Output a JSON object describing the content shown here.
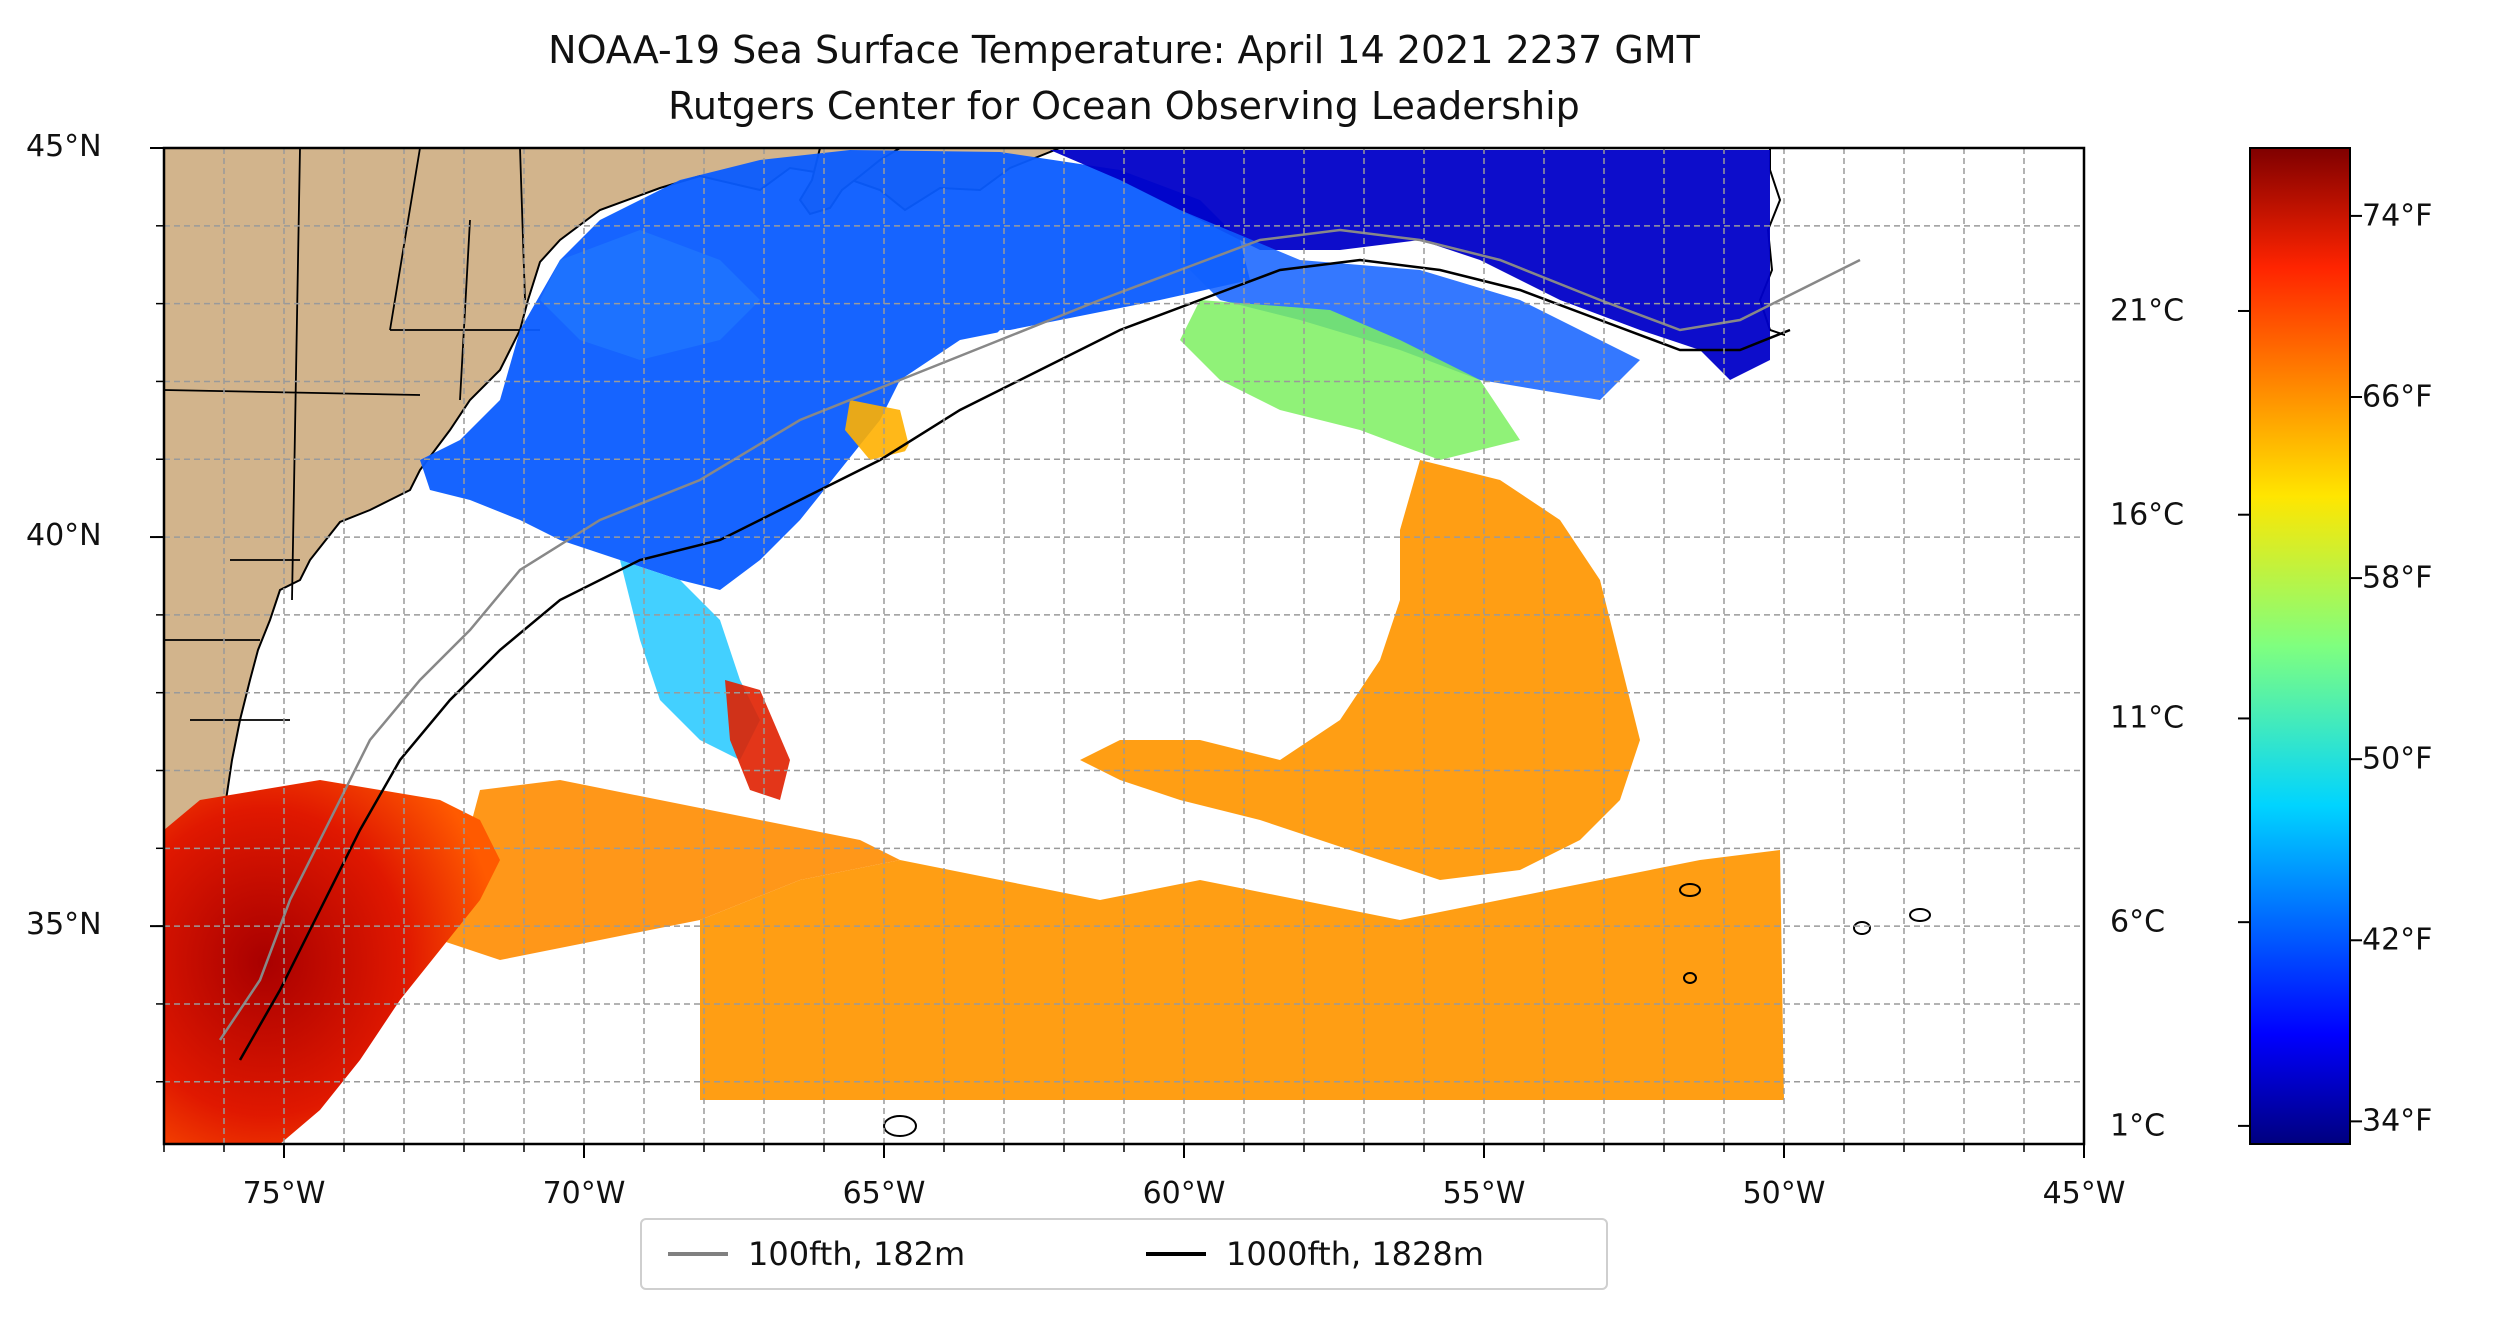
{
  "title": {
    "line1": "NOAA-19 Sea Surface Temperature: April 14 2021 2237 GMT",
    "line2": "Rutgers Center for Ocean Observing Leadership"
  },
  "map": {
    "lon_range": [
      -77,
      -45
    ],
    "lat_range": [
      32.2,
      45
    ],
    "lat_ticks": [
      {
        "value": 45,
        "label": "45°N"
      },
      {
        "value": 40,
        "label": "40°N"
      },
      {
        "value": 35,
        "label": "35°N"
      }
    ],
    "lon_ticks": [
      {
        "value": -75,
        "label": "75°W"
      },
      {
        "value": -70,
        "label": "70°W"
      },
      {
        "value": -65,
        "label": "65°W"
      },
      {
        "value": -60,
        "label": "60°W"
      },
      {
        "value": -55,
        "label": "55°W"
      },
      {
        "value": -50,
        "label": "50°W"
      },
      {
        "value": -45,
        "label": "45°W"
      }
    ],
    "gridlines": true,
    "land_color": "#d2b48c",
    "ocean_color": "#ffffff",
    "colormap": "jet"
  },
  "colorbar": {
    "range_f": [
      33,
      77
    ],
    "celsius_ticks": [
      {
        "value": 1,
        "label": "1°C"
      },
      {
        "value": 6,
        "label": "6°C"
      },
      {
        "value": 11,
        "label": "11°C"
      },
      {
        "value": 16,
        "label": "16°C"
      },
      {
        "value": 21,
        "label": "21°C"
      }
    ],
    "fahrenheit_ticks": [
      {
        "value": 34,
        "label": "34°F"
      },
      {
        "value": 42,
        "label": "42°F"
      },
      {
        "value": 50,
        "label": "50°F"
      },
      {
        "value": 58,
        "label": "58°F"
      },
      {
        "value": 66,
        "label": "66°F"
      },
      {
        "value": 74,
        "label": "74°F"
      }
    ]
  },
  "legend": {
    "position": "bottom-center",
    "items": [
      {
        "label": "100fth, 182m",
        "color": "#808080"
      },
      {
        "label": "1000fth, 1828m",
        "color": "#000000"
      }
    ]
  }
}
